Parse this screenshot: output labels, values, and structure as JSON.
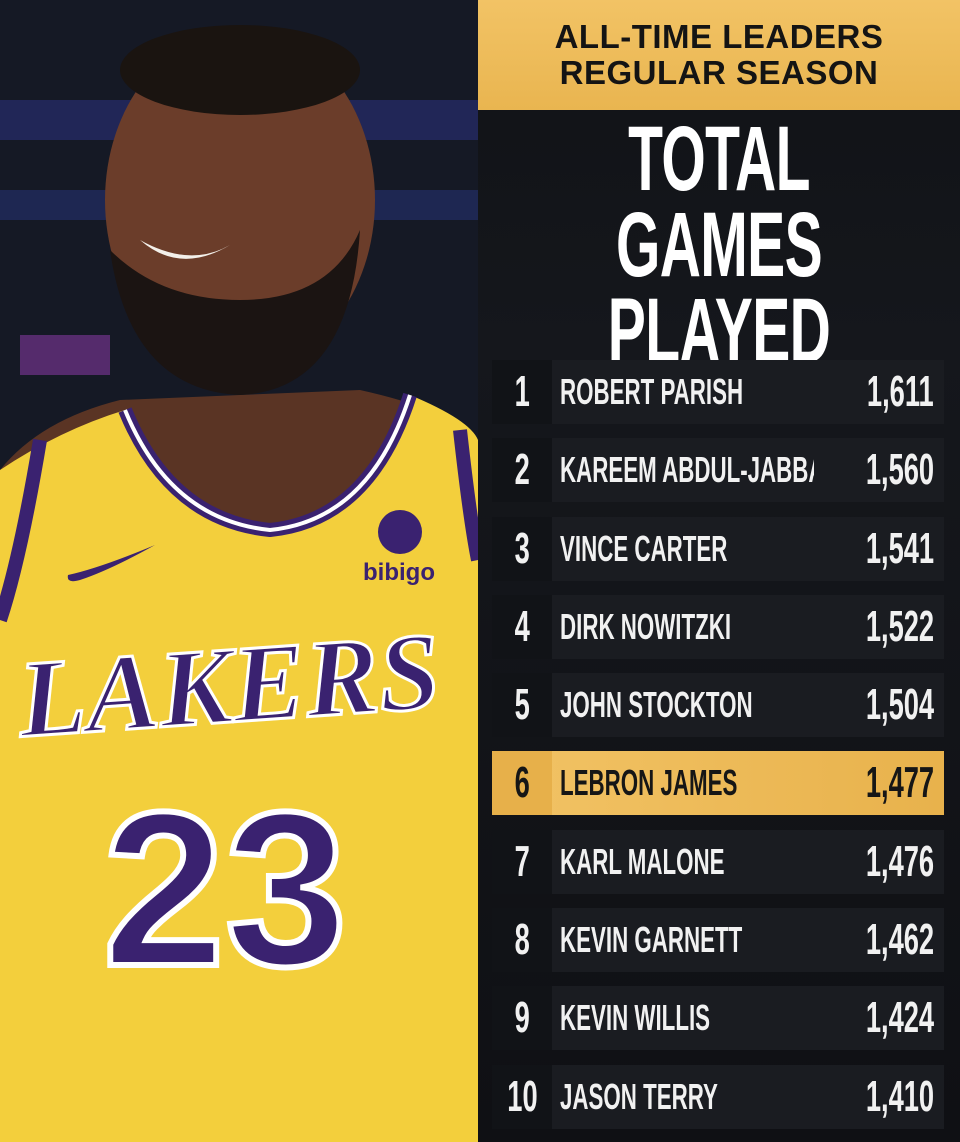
{
  "header": {
    "banner_line1": "ALL-TIME LEADERS",
    "banner_line2": "REGULAR SEASON",
    "title_line1": "TOTAL",
    "title_line2": "GAMES PLAYED"
  },
  "photo": {
    "jersey_team": "LAKERS",
    "jersey_number": "23",
    "sponsor": "bibigo"
  },
  "leaders": [
    {
      "rank": "1",
      "name": "ROBERT PARISH",
      "games": "1,611"
    },
    {
      "rank": "2",
      "name": "KAREEM ABDUL-JABBAR",
      "games": "1,560"
    },
    {
      "rank": "3",
      "name": "VINCE CARTER",
      "games": "1,541"
    },
    {
      "rank": "4",
      "name": "DIRK NOWITZKI",
      "games": "1,522"
    },
    {
      "rank": "5",
      "name": "JOHN STOCKTON",
      "games": "1,504"
    },
    {
      "rank": "6",
      "name": "LEBRON JAMES",
      "games": "1,477"
    },
    {
      "rank": "7",
      "name": "KARL MALONE",
      "games": "1,476"
    },
    {
      "rank": "8",
      "name": "KEVIN GARNETT",
      "games": "1,462"
    },
    {
      "rank": "9",
      "name": "KEVIN WILLIS",
      "games": "1,424"
    },
    {
      "rank": "10",
      "name": "JASON TERRY",
      "games": "1,410"
    }
  ],
  "colors": {
    "accent_gold": "#f2c365",
    "jersey_yellow": "#f3cf3c",
    "jersey_purple": "#3a2270",
    "row_dark": "#1a1c21"
  }
}
